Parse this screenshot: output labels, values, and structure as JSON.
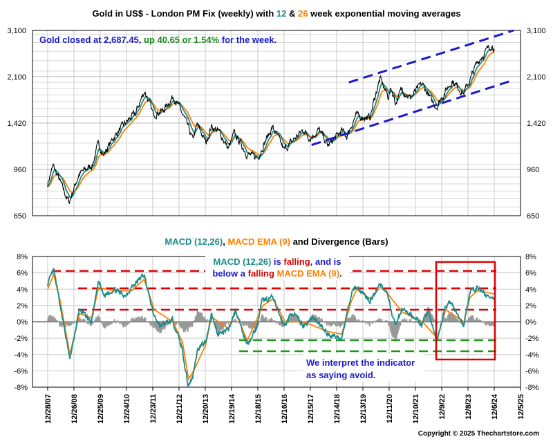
{
  "colors": {
    "gold": "#000000",
    "ema12": "#1a8a8a",
    "ema26": "#ff8000",
    "macd": "#1a8a8a",
    "signal": "#ff8000",
    "bars": "#999999",
    "annotation_blue": "#1a1acc",
    "up_green": "#1a8a1a",
    "red": "#dd0000",
    "green_dash": "#1a9a1a",
    "channel": "#1a1acc"
  },
  "top": {
    "title": {
      "pre": "Gold in US$ - London PM Fix (weekly) with ",
      "n12": "12",
      "mid": " & ",
      "n26": "26",
      "post": " week exponential moving averages"
    },
    "note": {
      "pre": "Gold closed at 2,687.45, ",
      "up": "up 40.65 or 1.54%",
      "post": " for the week."
    }
  },
  "bottom": {
    "title": {
      "a": "MACD (12,26)",
      "b": ", ",
      "c": "MACD EMA (9)",
      "d": " and Divergence (Bars)"
    },
    "note1": {
      "a": "MACD (12,26)",
      "b": " is ",
      "c": "falling",
      "d": ", and is"
    },
    "note2": {
      "a": "below a ",
      "b": "falling",
      "c": " ",
      "d": "MACD EMA (9)",
      "e": "."
    },
    "note3": "We interpret the indicator",
    "note4": "as saying avoid."
  },
  "copyright": "Copyright © 2025 Thechartstore.com",
  "chart_data": [
    {
      "type": "line",
      "title": "Gold in US$ - London PM Fix (weekly) with 12 & 26 week exponential moving averages",
      "y_scale": "log",
      "ylim": [
        650,
        3100
      ],
      "y_ticks": [
        "650",
        "960",
        "1,420",
        "2,100",
        "3,100"
      ],
      "y_tick_values": [
        650,
        960,
        1420,
        2100,
        3100
      ],
      "xlim": [
        "2007-06-01",
        "2025-12-05"
      ],
      "grid": true,
      "series": [
        {
          "name": "Gold",
          "x": [
            "2007-12-28",
            "2008-03-14",
            "2008-06-06",
            "2008-09-12",
            "2008-10-24",
            "2009-03-06",
            "2009-06-05",
            "2009-09-11",
            "2009-12-04",
            "2010-02-05",
            "2010-06-25",
            "2010-11-05",
            "2011-04-29",
            "2011-09-02",
            "2011-12-30",
            "2012-05-18",
            "2012-10-05",
            "2013-04-19",
            "2013-06-28",
            "2013-08-30",
            "2013-12-31",
            "2014-03-14",
            "2014-06-27",
            "2014-11-07",
            "2015-01-23",
            "2015-07-24",
            "2015-12-18",
            "2016-07-08",
            "2016-12-16",
            "2017-09-08",
            "2017-12-15",
            "2018-04-13",
            "2018-08-17",
            "2019-02-22",
            "2019-05-03",
            "2019-09-06",
            "2020-03-20",
            "2020-08-07",
            "2020-11-27",
            "2021-01-08",
            "2021-03-12",
            "2021-06-04",
            "2021-09-30",
            "2022-03-11",
            "2022-07-22",
            "2022-09-30",
            "2023-05-05",
            "2023-10-06",
            "2024-01-05",
            "2024-04-12",
            "2024-10-25",
            "2024-12-06"
          ],
          "values": [
            850,
            990,
            880,
            760,
            730,
            920,
            960,
            1000,
            1200,
            1080,
            1250,
            1390,
            1540,
            1860,
            1530,
            1580,
            1780,
            1390,
            1230,
            1400,
            1200,
            1380,
            1320,
            1140,
            1300,
            1090,
            1060,
            1370,
            1130,
            1340,
            1250,
            1340,
            1170,
            1330,
            1270,
            1510,
            1480,
            2060,
            1770,
            1900,
            1680,
            1890,
            1750,
            1980,
            1710,
            1630,
            2030,
            1820,
            2040,
            2360,
            2740,
            2687.45
          ]
        }
      ],
      "annotations": [
        "Gold closed at 2,687.45, up 40.65 or 1.54% for the week."
      ],
      "trend_channel": {
        "upper": [
          [
            "2019-06-01",
            2000
          ],
          [
            "2025-09-01",
            3100
          ]
        ],
        "lower": [
          [
            "2018-01-01",
            1180
          ],
          [
            "2025-09-01",
            2040
          ]
        ]
      }
    },
    {
      "type": "line",
      "title": "MACD (12,26), MACD EMA (9) and Divergence (Bars)",
      "ylim": [
        -8,
        8
      ],
      "y_ticks": [
        "-8%",
        "-6%",
        "-4%",
        "-2%",
        "0%",
        "2%",
        "4%",
        "6%",
        "8%"
      ],
      "y_tick_values": [
        -8,
        -6,
        -4,
        -2,
        0,
        2,
        4,
        6,
        8
      ],
      "x_ticks": [
        "12/28/07",
        "12/26/08",
        "12/25/09",
        "12/24/10",
        "12/23/11",
        "12/21/12",
        "12/20/13",
        "12/19/14",
        "12/18/15",
        "12/16/16",
        "12/15/17",
        "12/14/18",
        "12/13/19",
        "12/11/20",
        "12/10/21",
        "12/9/22",
        "12/8/23",
        "12/6/24",
        "12/5/25"
      ],
      "x_tick_values": [
        "2007-12-28",
        "2008-12-26",
        "2009-12-25",
        "2010-12-24",
        "2011-12-23",
        "2012-12-21",
        "2013-12-20",
        "2014-12-19",
        "2015-12-18",
        "2016-12-16",
        "2017-12-15",
        "2018-12-14",
        "2019-12-13",
        "2020-12-11",
        "2021-12-10",
        "2022-12-09",
        "2023-12-08",
        "2024-12-06",
        "2025-12-05"
      ],
      "grid": true,
      "series": [
        {
          "name": "MACD (12,26)",
          "x": [
            "2007-12-28",
            "2008-03-21",
            "2008-06-20",
            "2008-10-31",
            "2009-03-13",
            "2009-08-28",
            "2009-12-04",
            "2010-02-12",
            "2010-07-02",
            "2010-12-03",
            "2011-03-04",
            "2011-08-26",
            "2011-12-30",
            "2012-04-06",
            "2012-09-28",
            "2013-02-01",
            "2013-04-26",
            "2013-06-28",
            "2013-09-06",
            "2013-12-27",
            "2014-03-14",
            "2014-06-13",
            "2014-11-07",
            "2015-02-13",
            "2015-07-24",
            "2015-12-11",
            "2016-02-12",
            "2016-07-08",
            "2016-12-16",
            "2017-04-14",
            "2017-09-08",
            "2018-01-26",
            "2018-08-17",
            "2019-02-22",
            "2019-06-28",
            "2019-09-06",
            "2020-03-20",
            "2020-08-07",
            "2020-11-27",
            "2021-03-05",
            "2021-06-04",
            "2021-12-17",
            "2022-03-11",
            "2022-06-03",
            "2022-09-30",
            "2023-01-27",
            "2023-04-14",
            "2023-10-06",
            "2023-12-29",
            "2024-04-12",
            "2024-10-25",
            "2024-12-06"
          ],
          "values": [
            4.6,
            6.3,
            2.0,
            -4.6,
            1.5,
            0.0,
            5.0,
            3.2,
            4.0,
            3.2,
            4.2,
            5.8,
            1.0,
            -0.5,
            0.2,
            -3.2,
            -7.8,
            -6.8,
            -3.2,
            -2.5,
            1.0,
            -1.5,
            -1.0,
            1.5,
            -2.8,
            -0.5,
            2.5,
            3.0,
            -0.5,
            1.2,
            -0.5,
            0.5,
            -1.5,
            -2.0,
            3.0,
            4.5,
            2.5,
            4.8,
            3.0,
            -0.5,
            1.5,
            0.5,
            -0.5,
            1.5,
            -2.5,
            1.8,
            2.5,
            -0.5,
            3.5,
            4.2,
            2.8,
            2.5
          ]
        },
        {
          "name": "MACD EMA (9)",
          "x": [
            "2007-12-28",
            "2008-03-21",
            "2008-06-20",
            "2008-10-31",
            "2009-03-13",
            "2009-08-28",
            "2009-12-04",
            "2010-07-02",
            "2011-03-04",
            "2011-08-26",
            "2012-01-13",
            "2012-09-28",
            "2013-02-08",
            "2013-05-03",
            "2013-07-12",
            "2013-12-27",
            "2014-03-14",
            "2014-11-07",
            "2015-02-13",
            "2015-07-24",
            "2016-02-26",
            "2016-07-15",
            "2016-12-30",
            "2017-09-08",
            "2018-08-24",
            "2019-02-22",
            "2019-07-05",
            "2019-09-20",
            "2020-03-27",
            "2020-08-14",
            "2020-12-11",
            "2021-06-11",
            "2022-03-18",
            "2022-10-07",
            "2023-02-03",
            "2023-10-13",
            "2024-01-05",
            "2024-04-19",
            "2024-10-25",
            "2024-12-06"
          ],
          "values": [
            4.0,
            5.8,
            2.5,
            -4.0,
            1.0,
            0.5,
            4.2,
            3.8,
            3.8,
            5.2,
            1.5,
            0.0,
            -2.5,
            -7.0,
            -6.0,
            -2.8,
            0.6,
            -0.8,
            1.2,
            -2.3,
            2.0,
            2.8,
            0.0,
            0.0,
            -1.2,
            -1.5,
            2.5,
            4.0,
            2.8,
            4.3,
            3.2,
            1.2,
            0.0,
            -2.0,
            1.5,
            0.0,
            3.0,
            3.8,
            3.5,
            3.4
          ]
        }
      ],
      "annotations": [
        "MACD (12,26) is falling, and is",
        "below a falling MACD EMA (9).",
        "We interpret the indicator",
        "as saying avoid."
      ]
    }
  ]
}
